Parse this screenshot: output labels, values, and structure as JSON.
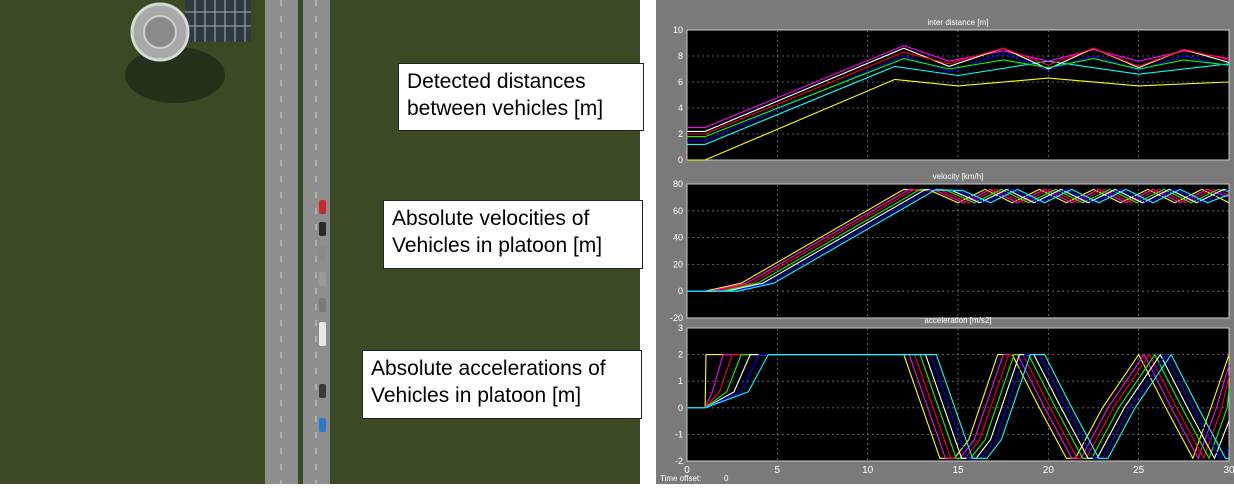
{
  "callouts": [
    {
      "line1": "Detected distances",
      "line2": "between vehicles [m]"
    },
    {
      "line1": "Absolute velocities of",
      "line2": "Vehicles in platoon [m]"
    },
    {
      "line1": "Absolute accelerations of",
      "line2": "Vehicles in platoon [m]"
    }
  ],
  "scope": {
    "time_offset_label": "Time offset:",
    "time_offset_value": "0",
    "background": "#000000",
    "frame_color": "#7a7a7a"
  },
  "vehicle_colors": [
    "#cc2a2a",
    "#2a2a2a",
    "#8a8a8a",
    "#9a9a9a",
    "#7a7a7a",
    "#e8e8e8",
    "#3a3a3a",
    "#2a7acc"
  ],
  "chart_data": [
    {
      "type": "line",
      "title": "inter distance [m]",
      "xlim": [
        0,
        30
      ],
      "ylim": [
        0,
        10
      ],
      "yticks": [
        0,
        2,
        4,
        6,
        8,
        10
      ],
      "xticks": [],
      "grid": true,
      "series": [
        {
          "color": "#ffff00",
          "x": [
            0,
            1,
            11.5,
            15,
            20,
            25,
            30
          ],
          "y": [
            0,
            0,
            6.2,
            5.7,
            6.3,
            5.7,
            6.0
          ]
        },
        {
          "color": "#00ffff",
          "x": [
            0,
            1,
            11.5,
            15,
            20,
            25,
            30
          ],
          "y": [
            1.2,
            1.2,
            7.2,
            6.5,
            7.6,
            6.6,
            7.4
          ]
        },
        {
          "color": "#ff00ff",
          "x": [
            0,
            1,
            12,
            14.5,
            17.5,
            20,
            22.5,
            25,
            27.5,
            30
          ],
          "y": [
            2.5,
            2.5,
            8.8,
            7.6,
            8.4,
            7.6,
            8.5,
            7.6,
            8.4,
            7.8
          ]
        },
        {
          "color": "#ffffff",
          "x": [
            0,
            1,
            12,
            14.5,
            17.5,
            20,
            22.5,
            25,
            27.5,
            30
          ],
          "y": [
            2.2,
            2.2,
            8.6,
            7.2,
            8.6,
            7.0,
            8.6,
            7.1,
            8.5,
            7.5
          ]
        },
        {
          "color": "#0000ff",
          "x": [
            0,
            1,
            12,
            14.5,
            17.5,
            20,
            22.5,
            25,
            27.5,
            30
          ],
          "y": [
            1.5,
            1.5,
            8.0,
            6.8,
            8.2,
            6.9,
            8.0,
            6.9,
            8.0,
            7.2
          ]
        },
        {
          "color": "#00ff00",
          "x": [
            0,
            1,
            12,
            14.5,
            17.5,
            20,
            22.5,
            25,
            27.5,
            30
          ],
          "y": [
            1.8,
            1.8,
            7.8,
            7.0,
            7.7,
            7.1,
            7.8,
            7.0,
            7.7,
            7.3
          ]
        },
        {
          "color": "#ff0000",
          "x": [
            0,
            1,
            12,
            14.5,
            17.5,
            20,
            22.5,
            25,
            27.5,
            30
          ],
          "y": [
            2.0,
            2.0,
            8.3,
            7.4,
            8.6,
            7.3,
            8.6,
            7.2,
            8.5,
            7.7
          ]
        }
      ]
    },
    {
      "type": "line",
      "title": "velocity [km/h]",
      "xlim": [
        0,
        30
      ],
      "ylim": [
        -20,
        80
      ],
      "yticks": [
        -20,
        0,
        20,
        40,
        60,
        80
      ],
      "xticks": [],
      "grid": true,
      "series": [
        {
          "color": "#ffff00",
          "x": [
            0,
            1,
            3,
            12,
            13.5,
            15,
            16.5,
            18,
            19.5,
            21,
            22.5,
            24,
            25.5,
            27,
            28.5,
            30
          ],
          "y": [
            0,
            0,
            6,
            76,
            75,
            66,
            76,
            66,
            76,
            66,
            76,
            66,
            76,
            66,
            76,
            66
          ]
        },
        {
          "color": "#ff00ff",
          "x": [
            0,
            1.3,
            3.3,
            12.3,
            13.8,
            15.3,
            16.8,
            18.3,
            19.8,
            21.3,
            22.8,
            24.3,
            25.8,
            27.3,
            28.8,
            30
          ],
          "y": [
            0,
            0,
            6,
            76,
            75,
            66,
            76,
            66,
            76,
            66,
            76,
            66,
            76,
            66,
            76,
            70
          ]
        },
        {
          "color": "#ff0000",
          "x": [
            0,
            1.6,
            3.6,
            12.6,
            14.1,
            15.6,
            17.1,
            18.6,
            20.1,
            21.6,
            23.1,
            24.6,
            26.1,
            27.6,
            29.1,
            30
          ],
          "y": [
            0,
            0,
            6,
            76,
            75,
            66,
            76,
            66,
            76,
            66,
            76,
            66,
            76,
            66,
            76,
            72
          ]
        },
        {
          "color": "#00ff00",
          "x": [
            0,
            1.9,
            3.9,
            12.9,
            14.4,
            15.9,
            17.4,
            18.9,
            20.4,
            21.9,
            23.4,
            24.9,
            26.4,
            27.9,
            29.4,
            30
          ],
          "y": [
            0,
            0,
            6,
            76,
            75,
            66,
            76,
            66,
            76,
            66,
            76,
            66,
            76,
            66,
            76,
            74
          ]
        },
        {
          "color": "#ffffff",
          "x": [
            0,
            2.2,
            4.2,
            13.2,
            14.7,
            16.2,
            17.7,
            19.2,
            20.7,
            22.2,
            23.7,
            25.2,
            26.7,
            28.2,
            29.7,
            30
          ],
          "y": [
            0,
            0,
            6,
            76,
            75,
            66,
            76,
            66,
            76,
            66,
            76,
            66,
            76,
            66,
            76,
            75
          ]
        },
        {
          "color": "#0000ff",
          "x": [
            0,
            2.5,
            4.5,
            13.5,
            15,
            16.5,
            18,
            19.5,
            21,
            22.5,
            24,
            25.5,
            27,
            28.5,
            30
          ],
          "y": [
            0,
            0,
            6,
            76,
            75,
            66,
            76,
            66,
            76,
            66,
            76,
            66,
            76,
            66,
            76
          ]
        },
        {
          "color": "#00ffff",
          "x": [
            0,
            2.8,
            4.8,
            13.8,
            15.3,
            16.8,
            18.3,
            19.8,
            21.3,
            22.8,
            24.3,
            25.8,
            27.3,
            28.8,
            30
          ],
          "y": [
            0,
            0,
            6,
            76,
            75,
            66,
            76,
            66,
            76,
            66,
            76,
            66,
            76,
            66,
            72
          ]
        }
      ]
    },
    {
      "type": "line",
      "title": "acceleration [m/s2]",
      "xlim": [
        0,
        30
      ],
      "ylim": [
        -2,
        3
      ],
      "yticks": [
        -2,
        -1,
        0,
        1,
        2,
        3
      ],
      "xticks": [
        0,
        5,
        10,
        15,
        20,
        25,
        30
      ],
      "grid": true,
      "series": [
        {
          "color": "#ffff00",
          "x": [
            0,
            1,
            1.05,
            11.5,
            12,
            14,
            14.8,
            15.6,
            17.2,
            18,
            19.5,
            21,
            21.5,
            23,
            25,
            26.5,
            28,
            29,
            30
          ],
          "y": [
            0,
            0,
            2,
            2,
            2,
            -1.9,
            -1.9,
            -1.2,
            2,
            2,
            0,
            -1.9,
            -1.9,
            0,
            2,
            0,
            -1.9,
            0,
            2
          ]
        },
        {
          "color": "#ff00ff",
          "x": [
            0,
            1,
            1.4,
            2,
            12,
            12.3,
            14.3,
            15.1,
            15.9,
            17.5,
            18.3,
            19.8,
            21.3,
            21.8,
            23.3,
            25.3,
            26.8,
            28.3,
            29.3,
            30
          ],
          "y": [
            0,
            0,
            0.6,
            2,
            2,
            2,
            -1.9,
            -1.9,
            -1.2,
            2,
            2,
            0,
            -1.9,
            -1.9,
            0,
            2,
            0,
            -1.9,
            0,
            1.6
          ]
        },
        {
          "color": "#ff0000",
          "x": [
            0,
            1,
            1.8,
            2.5,
            12,
            12.6,
            14.6,
            15.4,
            16.2,
            17.8,
            18.6,
            20.1,
            21.6,
            22.1,
            23.6,
            25.6,
            27.1,
            28.6,
            29.6,
            30
          ],
          "y": [
            0,
            0,
            0.6,
            2,
            2,
            2,
            -1.9,
            -1.9,
            -1.2,
            2,
            2,
            0,
            -1.9,
            -1.9,
            0,
            2,
            0,
            -1.9,
            0,
            1.2
          ]
        },
        {
          "color": "#00ff00",
          "x": [
            0,
            1,
            2.2,
            3,
            12,
            12.9,
            14.9,
            15.7,
            16.5,
            18.1,
            18.9,
            20.4,
            21.9,
            22.4,
            23.9,
            25.9,
            27.4,
            28.9,
            29.9,
            30
          ],
          "y": [
            0,
            0,
            0.6,
            2,
            2,
            2,
            -1.9,
            -1.9,
            -1.2,
            2,
            2,
            0,
            -1.9,
            -1.9,
            0,
            2,
            0,
            -1.9,
            0,
            0.7
          ]
        },
        {
          "color": "#ffffff",
          "x": [
            0,
            1,
            2.6,
            3.5,
            12,
            13.2,
            15.2,
            16,
            16.8,
            18.4,
            19.2,
            20.7,
            22.2,
            22.7,
            24.2,
            26.2,
            27.7,
            29.2,
            30
          ],
          "y": [
            0,
            0,
            0.6,
            2,
            2,
            2,
            -1.9,
            -1.9,
            -1.2,
            2,
            2,
            0,
            -1.9,
            -1.9,
            0,
            2,
            0,
            -1.9,
            -0.5
          ]
        },
        {
          "color": "#0000ff",
          "x": [
            0,
            1,
            3,
            4,
            12,
            13.5,
            15.5,
            16.3,
            17.1,
            18.7,
            19.5,
            21,
            22.5,
            23,
            24.5,
            26.5,
            28,
            29.5,
            30
          ],
          "y": [
            0,
            0,
            0.6,
            2,
            2,
            2,
            -1.9,
            -1.9,
            -1.2,
            2,
            2,
            0,
            -1.9,
            -1.9,
            0,
            2,
            0,
            -1.9,
            -1.5
          ]
        },
        {
          "color": "#00ffff",
          "x": [
            0,
            1,
            3.4,
            4.5,
            12,
            13.8,
            15.8,
            16.6,
            17.4,
            19,
            19.8,
            21.3,
            22.8,
            23.3,
            24.8,
            26.8,
            28.3,
            29.8,
            30
          ],
          "y": [
            0,
            0,
            0.6,
            2,
            2,
            2,
            -1.9,
            -1.9,
            -1.2,
            2,
            2,
            0,
            -1.9,
            -1.9,
            0,
            2,
            0,
            -1.9,
            -1.9
          ]
        }
      ]
    }
  ]
}
